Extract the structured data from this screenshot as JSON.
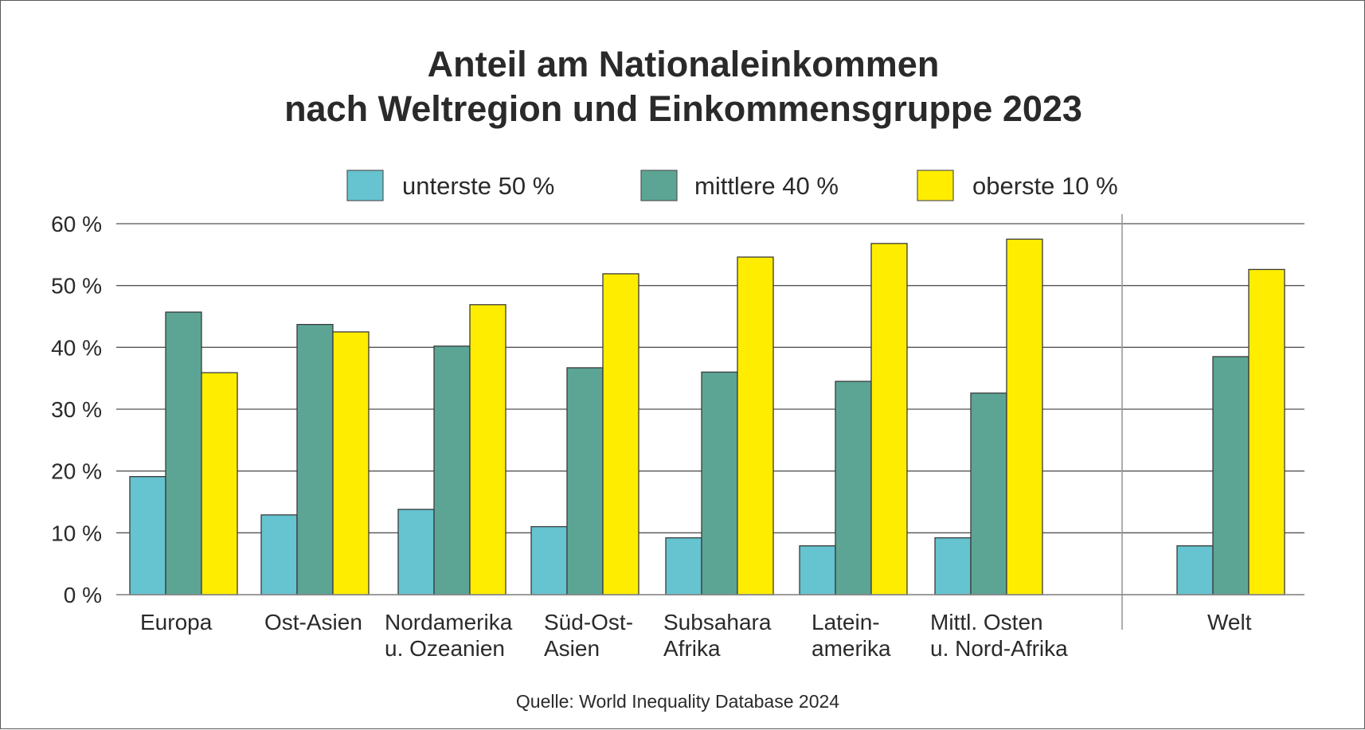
{
  "chart_data": {
    "type": "bar",
    "title": [
      "Anteil am Nationaleinkommen",
      "nach Weltregion und Einkommensgruppe 2023"
    ],
    "xlabel": "",
    "ylabel": "",
    "ylim": [
      0,
      60
    ],
    "yticks": [
      0,
      10,
      20,
      30,
      40,
      50,
      60
    ],
    "ytick_labels": [
      "0 %",
      "10 %",
      "20 %",
      "30 %",
      "40 %",
      "50 %",
      "60 %"
    ],
    "grid": true,
    "legend_position": "top-center",
    "categories": [
      [
        "Europa"
      ],
      [
        "Ost-Asien"
      ],
      [
        "Nordamerika",
        "u. Ozeanien"
      ],
      [
        "Süd-Ost-",
        "Asien"
      ],
      [
        "Subsahara",
        "Afrika"
      ],
      [
        "Latein-",
        "amerika"
      ],
      [
        "Mittl. Osten",
        "u. Nord-Afrika"
      ],
      [
        "Welt"
      ]
    ],
    "series": [
      {
        "name": "unterste 50 %",
        "color": "#66c3d0",
        "values": [
          19.1,
          12.9,
          13.8,
          11.0,
          9.2,
          7.9,
          9.2,
          7.9
        ]
      },
      {
        "name": "mittlere 40 %",
        "color": "#5ca595",
        "values": [
          45.7,
          43.7,
          40.2,
          36.7,
          36.0,
          34.5,
          32.6,
          38.5
        ]
      },
      {
        "name": "oberste 10 %",
        "color": "#ffed00",
        "values": [
          35.9,
          42.5,
          46.9,
          51.9,
          54.6,
          56.8,
          57.5,
          52.6
        ]
      }
    ],
    "separator_before_category": "Welt",
    "source": "Quelle: World Inequality Database 2024"
  }
}
